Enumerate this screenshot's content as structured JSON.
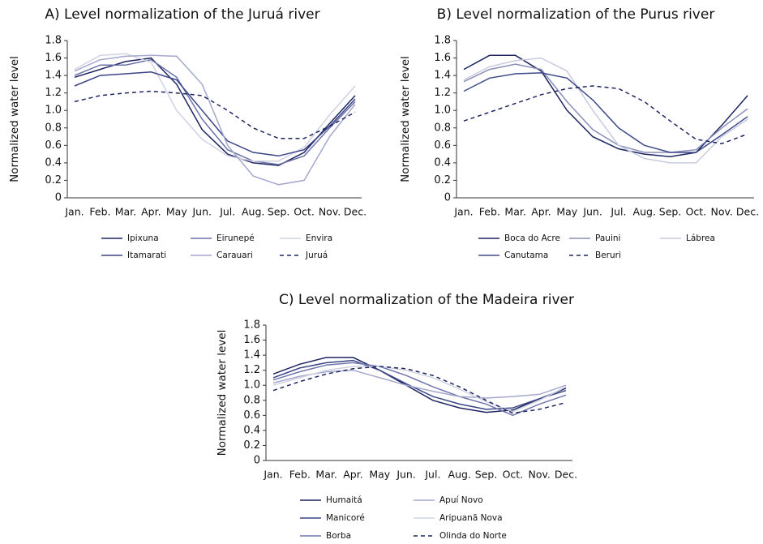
{
  "chart_data": [
    {
      "type": "line",
      "title": "A) Level normalization of the Juruá river",
      "y_label": "Normalized water level",
      "categories": [
        "Jan.",
        "Feb.",
        "Mar.",
        "Apr.",
        "May",
        "Jun.",
        "Jul.",
        "Aug.",
        "Sep.",
        "Oct.",
        "Nov.",
        "Dec."
      ],
      "ylim": [
        0,
        1.8
      ],
      "yticks": [
        0,
        0.2,
        0.4,
        0.6,
        0.8,
        {
          "value": 1,
          "label": "1.0"
        },
        1.2,
        1.4,
        1.6,
        1.8
      ],
      "series": [
        {
          "name": "Ipixuna",
          "color": "#1c2560",
          "style": "solid",
          "values": [
            1.38,
            1.47,
            1.56,
            1.6,
            1.3,
            0.78,
            0.5,
            0.4,
            0.37,
            0.52,
            0.85,
            1.17
          ]
        },
        {
          "name": "Eirunepé",
          "color": "#6a72a8",
          "style": "solid",
          "values": [
            1.4,
            1.52,
            1.52,
            1.58,
            1.38,
            0.9,
            0.55,
            0.42,
            0.38,
            0.48,
            0.8,
            1.1
          ]
        },
        {
          "name": "Envira",
          "color": "#d0d2e4",
          "style": "solid",
          "values": [
            1.47,
            1.63,
            1.65,
            1.55,
            1.0,
            0.67,
            0.48,
            0.42,
            0.42,
            0.58,
            0.95,
            1.28
          ]
        },
        {
          "name": "Itamarati",
          "color": "#3b4486",
          "style": "solid",
          "values": [
            1.28,
            1.4,
            1.42,
            1.44,
            1.35,
            1.0,
            0.65,
            0.52,
            0.48,
            0.55,
            0.82,
            1.13
          ]
        },
        {
          "name": "Carauari",
          "color": "#a4a8cc",
          "style": "solid",
          "values": [
            1.45,
            1.58,
            1.62,
            1.63,
            1.62,
            1.3,
            0.6,
            0.25,
            0.15,
            0.2,
            0.7,
            1.07
          ]
        },
        {
          "name": "Juruá",
          "color": "#1c2560",
          "style": "dashed",
          "values": [
            1.1,
            1.17,
            1.2,
            1.22,
            1.2,
            1.17,
            1.0,
            0.8,
            0.68,
            0.68,
            0.82,
            0.98
          ]
        }
      ]
    },
    {
      "type": "line",
      "title": "B) Level normalization of the Purus river",
      "y_label": "Normalized water level",
      "categories": [
        "Jan.",
        "Feb.",
        "Mar.",
        "Apr.",
        "May",
        "Jun.",
        "Jul.",
        "Aug.",
        "Sep.",
        "Oct.",
        "Nov.",
        "Dec."
      ],
      "ylim": [
        0,
        1.8
      ],
      "yticks": [
        0,
        0.2,
        0.4,
        0.6,
        0.8,
        {
          "value": 1,
          "label": "1.0"
        },
        1.2,
        1.4,
        1.6,
        1.8
      ],
      "series": [
        {
          "name": "Boca do Acre",
          "color": "#1c2560",
          "style": "solid",
          "values": [
            1.47,
            1.63,
            1.63,
            1.45,
            1.0,
            0.7,
            0.56,
            0.5,
            0.47,
            0.52,
            0.83,
            1.17
          ]
        },
        {
          "name": "Pauini",
          "color": "#8a8fb8",
          "style": "solid",
          "values": [
            1.33,
            1.47,
            1.53,
            1.47,
            1.1,
            0.78,
            0.6,
            0.52,
            0.52,
            0.55,
            0.8,
            1.02
          ]
        },
        {
          "name": "Lábrea",
          "color": "#c8cadf",
          "style": "solid",
          "values": [
            1.35,
            1.5,
            1.57,
            1.6,
            1.45,
            1.0,
            0.6,
            0.45,
            0.4,
            0.4,
            0.7,
            0.9
          ]
        },
        {
          "name": "Canutama",
          "color": "#3f4a88",
          "style": "solid",
          "values": [
            1.22,
            1.37,
            1.42,
            1.43,
            1.37,
            1.12,
            0.8,
            0.6,
            0.52,
            0.52,
            0.72,
            0.93
          ]
        },
        {
          "name": "Beruri",
          "color": "#1c2560",
          "style": "dashed",
          "values": [
            0.88,
            0.98,
            1.08,
            1.18,
            1.25,
            1.28,
            1.25,
            1.1,
            0.88,
            0.67,
            0.62,
            0.73
          ]
        }
      ]
    },
    {
      "type": "line",
      "title": "C) Level normalization of the Madeira river",
      "y_label": "Normalized water level",
      "categories": [
        "Jan.",
        "Feb.",
        "Mar.",
        "Apr.",
        "May",
        "Jun.",
        "Jul.",
        "Aug.",
        "Sep.",
        "Oct.",
        "Nov.",
        "Dec."
      ],
      "ylim": [
        0,
        1.8
      ],
      "yticks": [
        0,
        0.2,
        0.4,
        0.6,
        0.8,
        {
          "value": 1,
          "label": "1.0"
        },
        1.2,
        1.4,
        1.6,
        1.8
      ],
      "series": [
        {
          "name": "Humaitá",
          "color": "#1c2560",
          "style": "solid",
          "values": [
            1.15,
            1.28,
            1.37,
            1.37,
            1.2,
            1.0,
            0.8,
            0.7,
            0.64,
            0.67,
            0.82,
            0.96
          ]
        },
        {
          "name": "Manicoré",
          "color": "#3b4486",
          "style": "solid",
          "values": [
            1.1,
            1.23,
            1.3,
            1.33,
            1.2,
            1.02,
            0.85,
            0.75,
            0.68,
            0.7,
            0.82,
            0.93
          ]
        },
        {
          "name": "Borba",
          "color": "#7077ad",
          "style": "solid",
          "values": [
            1.07,
            1.18,
            1.27,
            1.3,
            1.25,
            1.13,
            0.98,
            0.85,
            0.75,
            0.6,
            0.75,
            0.87
          ]
        },
        {
          "name": "Apuí Novo",
          "color": "#a4a8cc",
          "style": "solid",
          "values": [
            1.03,
            1.12,
            1.18,
            1.2,
            1.1,
            1.0,
            0.92,
            0.85,
            0.83,
            0.85,
            0.88,
            1.0
          ]
        },
        {
          "name": "Aripuanã Nova",
          "color": "#d0d2e4",
          "style": "solid",
          "values": [
            1.0,
            1.1,
            1.2,
            1.25,
            1.25,
            1.2,
            1.1,
            0.95,
            0.78,
            0.65,
            0.8,
            0.98
          ]
        },
        {
          "name": "Olinda do Norte",
          "color": "#1c2560",
          "style": "dashed",
          "values": [
            0.93,
            1.05,
            1.15,
            1.22,
            1.25,
            1.22,
            1.13,
            0.98,
            0.8,
            0.63,
            0.68,
            0.77
          ]
        }
      ]
    }
  ]
}
